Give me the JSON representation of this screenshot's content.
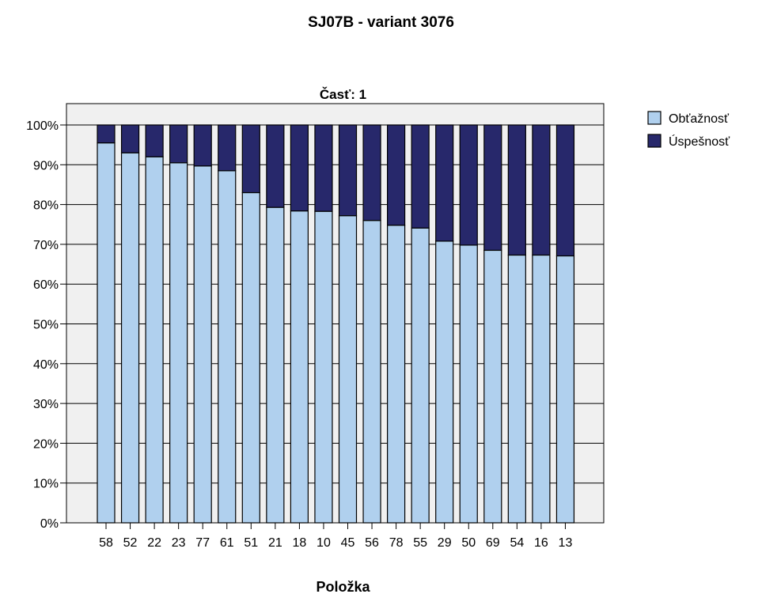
{
  "chart_data": {
    "type": "bar",
    "stacked": true,
    "title": "SJ07B - variant 3076",
    "panel_label": "Časť: 1",
    "xlabel": "Položka",
    "ylabel": "",
    "ylim": [
      0,
      100
    ],
    "yticks": [
      "0%",
      "10%",
      "20%",
      "30%",
      "40%",
      "50%",
      "60%",
      "70%",
      "80%",
      "90%",
      "100%"
    ],
    "categories": [
      "58",
      "52",
      "22",
      "23",
      "77",
      "61",
      "51",
      "21",
      "18",
      "10",
      "45",
      "56",
      "78",
      "55",
      "29",
      "50",
      "69",
      "54",
      "16",
      "13"
    ],
    "series": [
      {
        "name": "Obťažnosť",
        "color": "#b0d0ee",
        "values": [
          95.5,
          93,
          92,
          90.5,
          89.7,
          88.5,
          83,
          79.3,
          78.4,
          78.3,
          77.2,
          76,
          74.8,
          74.1,
          70.8,
          69.8,
          68.5,
          67.3,
          67.3,
          67.1
        ]
      },
      {
        "name": "Úspešnosť",
        "color": "#27286b",
        "values": [
          4.5,
          7,
          8,
          9.5,
          10.3,
          11.5,
          17,
          20.7,
          21.6,
          21.7,
          22.8,
          24,
          25.2,
          25.9,
          29.2,
          30.2,
          31.5,
          32.7,
          32.7,
          32.9
        ]
      }
    ],
    "legend_position": "right",
    "background_color": "#f0f0f0",
    "grid": true
  }
}
